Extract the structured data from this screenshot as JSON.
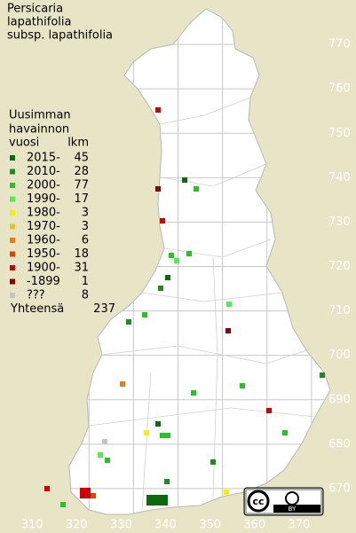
{
  "title": [
    "Persicaria",
    "lapathifolia",
    "subsp. lapathifolia"
  ],
  "legend": {
    "heading": [
      "Uusimman",
      "havainnon"
    ],
    "year_header": "vuosi",
    "count_header": "lkm",
    "entries": [
      {
        "label": "2015-",
        "count": 45,
        "color": "#0b6b0b"
      },
      {
        "label": "2010-",
        "count": 28,
        "color": "#1e8c1e"
      },
      {
        "label": "2000-",
        "count": 77,
        "color": "#22c522"
      },
      {
        "label": "1990-",
        "count": 17,
        "color": "#4cf04c"
      },
      {
        "label": "1980-",
        "count": 3,
        "color": "#f2f200"
      },
      {
        "label": "1970-",
        "count": 3,
        "color": "#e8c41c"
      },
      {
        "label": "1960-",
        "count": 6,
        "color": "#f07814"
      },
      {
        "label": "1950-",
        "count": 18,
        "color": "#e44000"
      },
      {
        "label": "1900-",
        "count": 31,
        "color": "#d20000"
      },
      {
        "label": "-1899",
        "count": 1,
        "color": "#8a0000"
      },
      {
        "label": "???",
        "count": 8,
        "color": "#c4c4c4"
      }
    ],
    "total_label": "Yhteensä",
    "total": 237
  },
  "map": {
    "xlim": [
      300,
      380
    ],
    "ylim": [
      660,
      780
    ],
    "xticks": [
      310,
      320,
      330,
      340,
      350,
      360,
      370
    ],
    "yticks": [
      670,
      680,
      690,
      700,
      710,
      720,
      730,
      740,
      750,
      760,
      770
    ]
  },
  "license": {
    "cc": "cc",
    "by": "BY"
  }
}
